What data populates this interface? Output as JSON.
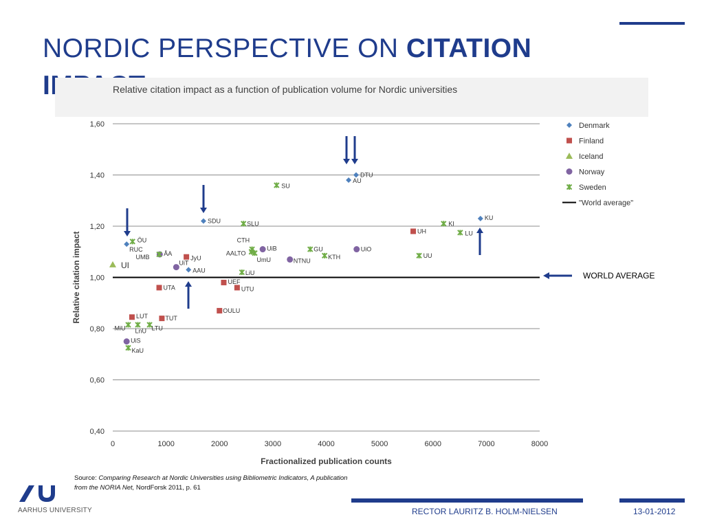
{
  "slide": {
    "title_prefix": "NORDIC PERSPECTIVE ON ",
    "title_bold": "CITATION IMPACT",
    "source_prefix": "Source: ",
    "source_italic": "Comparing Research at Nordic Universities using Bibliometric Indicators, A publication from the NORIA Net,",
    "source_suffix": " NordForsk 2011, p. 61",
    "logo_text": "AARHUS UNIVERSITY",
    "footer_name": "RECTOR LAURITZ B. HOLM-NIELSEN",
    "footer_date": "13-01-2012",
    "world_average_callout": "WORLD AVERAGE",
    "brand_color": "#1f3c8c"
  },
  "chart_data": {
    "type": "scatter",
    "title": "Relative citation impact as a function of publication volume for Nordic universities",
    "xlabel": "Fractionalized publication counts",
    "ylabel": "Relative citation impact",
    "xlim": [
      0,
      8000
    ],
    "ylim": [
      0.4,
      1.6
    ],
    "xticks": [
      0,
      1000,
      2000,
      3000,
      4000,
      5000,
      6000,
      7000,
      8000
    ],
    "xtick_labels": [
      "0",
      "1000",
      "2000",
      "3000",
      "4000",
      "5000",
      "6000",
      "7000",
      "8000"
    ],
    "yticks": [
      0.4,
      0.6,
      0.8,
      1.0,
      1.2,
      1.4,
      1.6
    ],
    "ytick_labels": [
      "0,40",
      "0,60",
      "0,80",
      "1,00",
      "1,20",
      "1,40",
      "1,60"
    ],
    "grid": "horizontal",
    "legend_position": "right",
    "reference_line": {
      "name": "\"World average\"",
      "y": 1.0
    },
    "series": [
      {
        "name": "Denmark",
        "marker": "diamond",
        "color": "#4f81bd",
        "points": [
          {
            "label": "DTU",
            "x": 4560,
            "y": 1.4
          },
          {
            "label": "AU",
            "x": 4420,
            "y": 1.38
          },
          {
            "label": "KU",
            "x": 6890,
            "y": 1.23
          },
          {
            "label": "SDU",
            "x": 1700,
            "y": 1.22
          },
          {
            "label": "RUC",
            "x": 260,
            "y": 1.13
          },
          {
            "label": "AAU",
            "x": 1420,
            "y": 1.03
          }
        ]
      },
      {
        "name": "Finland",
        "marker": "square",
        "color": "#c0504d",
        "points": [
          {
            "label": "UH",
            "x": 5630,
            "y": 1.18
          },
          {
            "label": "JyU",
            "x": 1380,
            "y": 1.08
          },
          {
            "label": "UEF",
            "x": 2080,
            "y": 0.98
          },
          {
            "label": "UTA",
            "x": 870,
            "y": 0.96
          },
          {
            "label": "UTU",
            "x": 2330,
            "y": 0.96
          },
          {
            "label": "OULU",
            "x": 2000,
            "y": 0.87
          },
          {
            "label": "LUT",
            "x": 360,
            "y": 0.845
          },
          {
            "label": "TUT",
            "x": 920,
            "y": 0.84
          }
        ]
      },
      {
        "name": "Iceland",
        "marker": "triangle",
        "color": "#9bbb59",
        "points": [
          {
            "label": "UI",
            "x": 0,
            "y": 1.05
          }
        ]
      },
      {
        "name": "Norway",
        "marker": "circle",
        "color": "#8064a2",
        "points": [
          {
            "label": "UiO",
            "x": 4570,
            "y": 1.11
          },
          {
            "label": "UiB",
            "x": 2810,
            "y": 1.11
          },
          {
            "label": "ÅA",
            "x": 880,
            "y": 1.09
          },
          {
            "label": "NTNU",
            "x": 3320,
            "y": 1.07
          },
          {
            "label": "UiT",
            "x": 1190,
            "y": 1.04
          },
          {
            "label": "UiS",
            "x": 260,
            "y": 0.75
          }
        ]
      },
      {
        "name": "Sweden",
        "marker": "x",
        "color": "#4bacc6",
        "points": [
          {
            "label": "SU",
            "x": 3070,
            "y": 1.36
          },
          {
            "label": "KI",
            "x": 6200,
            "y": 1.21
          },
          {
            "label": "SLU",
            "x": 2450,
            "y": 1.21
          },
          {
            "label": "LU",
            "x": 6510,
            "y": 1.175
          },
          {
            "label": "ÖU",
            "x": 370,
            "y": 1.14
          },
          {
            "label": "CTH",
            "x": 2610,
            "y": 1.11
          },
          {
            "label": "GU",
            "x": 3700,
            "y": 1.11
          },
          {
            "label": "AALTO",
            "x": 2600,
            "y": 1.1
          },
          {
            "label": "UMB",
            "x": 870,
            "y": 1.09
          },
          {
            "label": "KTH",
            "x": 3970,
            "y": 1.085
          },
          {
            "label": "UU",
            "x": 5740,
            "y": 1.085
          },
          {
            "label": "UmU",
            "x": 2660,
            "y": 1.095
          },
          {
            "label": "LiU",
            "x": 2420,
            "y": 1.02
          },
          {
            "label": "MiU",
            "x": 290,
            "y": 0.815
          },
          {
            "label": "LnU",
            "x": 470,
            "y": 0.815
          },
          {
            "label": "LTU",
            "x": 690,
            "y": 0.815
          },
          {
            "label": "KaU",
            "x": 290,
            "y": 0.725
          }
        ]
      }
    ]
  }
}
